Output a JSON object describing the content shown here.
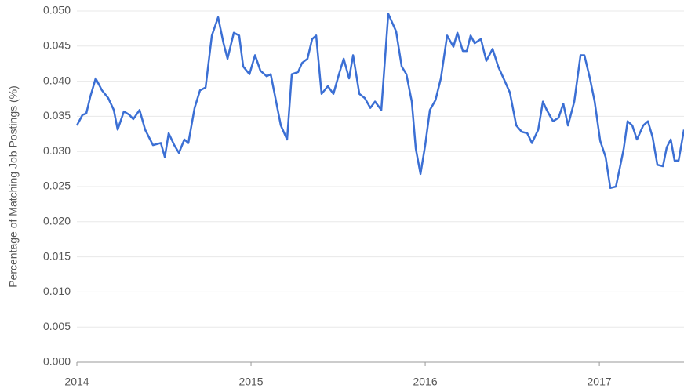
{
  "chart_data": {
    "type": "line",
    "ylabel": "Percentage of Matching Job Postings (%)",
    "xlim": [
      2014,
      2017.486
    ],
    "xticks": [
      2014,
      2015,
      2016,
      2017
    ],
    "ylim": [
      0,
      0.05
    ],
    "yticks": [
      {
        "value": 0,
        "label": "0.000"
      },
      {
        "value": 0.005,
        "label": "0.005"
      },
      {
        "value": 0.01,
        "label": "0.010"
      },
      {
        "value": 0.015,
        "label": "0.015"
      },
      {
        "value": 0.02,
        "label": "0.020"
      },
      {
        "value": 0.025,
        "label": "0.025"
      },
      {
        "value": 0.03,
        "label": "0.030"
      },
      {
        "value": 0.035,
        "label": "0.035"
      },
      {
        "value": 0.04,
        "label": "0.040"
      },
      {
        "value": 0.045,
        "label": "0.045"
      },
      {
        "value": 0.05,
        "label": "0.050"
      }
    ],
    "grid": true,
    "color": "#3b6fd4",
    "x": [
      2014.0,
      2014.032,
      2014.054,
      2014.077,
      2014.108,
      2014.144,
      2014.18,
      2014.212,
      2014.234,
      2014.27,
      2014.302,
      2014.324,
      2014.36,
      2014.392,
      2014.437,
      2014.482,
      2014.505,
      2014.527,
      2014.559,
      2014.586,
      2014.617,
      2014.64,
      2014.676,
      2014.707,
      2014.739,
      2014.775,
      2014.811,
      2014.842,
      2014.865,
      2014.901,
      2014.932,
      2014.955,
      2014.991,
      2015.023,
      2015.054,
      2015.09,
      2015.113,
      2015.144,
      2015.171,
      2015.207,
      2015.234,
      2015.27,
      2015.293,
      2015.324,
      2015.351,
      2015.374,
      2015.405,
      2015.441,
      2015.473,
      2015.505,
      2015.532,
      2015.563,
      2015.586,
      2015.622,
      2015.653,
      2015.685,
      2015.712,
      2015.748,
      2015.788,
      2015.833,
      2015.865,
      2015.892,
      2015.923,
      2015.946,
      2015.973,
      2016.0,
      2016.027,
      2016.059,
      2016.09,
      2016.126,
      2016.162,
      2016.185,
      2016.216,
      2016.239,
      2016.261,
      2016.284,
      2016.32,
      2016.351,
      2016.387,
      2016.419,
      2016.45,
      2016.486,
      2016.523,
      2016.554,
      2016.586,
      2016.613,
      2016.649,
      2016.676,
      2016.698,
      2016.734,
      2016.766,
      2016.793,
      2016.82,
      2016.856,
      2016.892,
      2016.914,
      2016.946,
      2016.973,
      2017.005,
      2017.036,
      2017.063,
      2017.095,
      2017.117,
      2017.14,
      2017.162,
      2017.189,
      2017.216,
      2017.252,
      2017.279,
      2017.306,
      2017.333,
      2017.365,
      2017.387,
      2017.41,
      2017.432,
      2017.455,
      2017.486
    ],
    "values": [
      0.0337,
      0.0352,
      0.0354,
      0.0378,
      0.0404,
      0.0387,
      0.0376,
      0.0359,
      0.0331,
      0.0357,
      0.0352,
      0.0346,
      0.0359,
      0.0331,
      0.0309,
      0.0312,
      0.0292,
      0.0326,
      0.0309,
      0.0298,
      0.0317,
      0.0312,
      0.0362,
      0.0387,
      0.0391,
      0.0465,
      0.0491,
      0.0454,
      0.0432,
      0.0469,
      0.0465,
      0.0421,
      0.041,
      0.0437,
      0.0415,
      0.0407,
      0.041,
      0.0371,
      0.0337,
      0.0317,
      0.041,
      0.0413,
      0.0426,
      0.0432,
      0.046,
      0.0465,
      0.0382,
      0.0393,
      0.0382,
      0.041,
      0.0432,
      0.0404,
      0.0437,
      0.0382,
      0.0376,
      0.0362,
      0.0371,
      0.0359,
      0.0496,
      0.0471,
      0.0421,
      0.041,
      0.0371,
      0.0304,
      0.0268,
      0.0309,
      0.0359,
      0.0373,
      0.0404,
      0.0465,
      0.0449,
      0.0469,
      0.0443,
      0.0443,
      0.0465,
      0.0454,
      0.046,
      0.0429,
      0.0446,
      0.0421,
      0.0404,
      0.0384,
      0.0337,
      0.0328,
      0.0326,
      0.0312,
      0.0331,
      0.0371,
      0.0359,
      0.0343,
      0.0348,
      0.0368,
      0.0337,
      0.0371,
      0.0437,
      0.0437,
      0.0404,
      0.0371,
      0.0315,
      0.0292,
      0.0248,
      0.025,
      0.0276,
      0.0304,
      0.0343,
      0.0337,
      0.0317,
      0.0337,
      0.0343,
      0.032,
      0.0281,
      0.0279,
      0.0306,
      0.0317,
      0.0287,
      0.0287,
      0.0331
    ]
  }
}
